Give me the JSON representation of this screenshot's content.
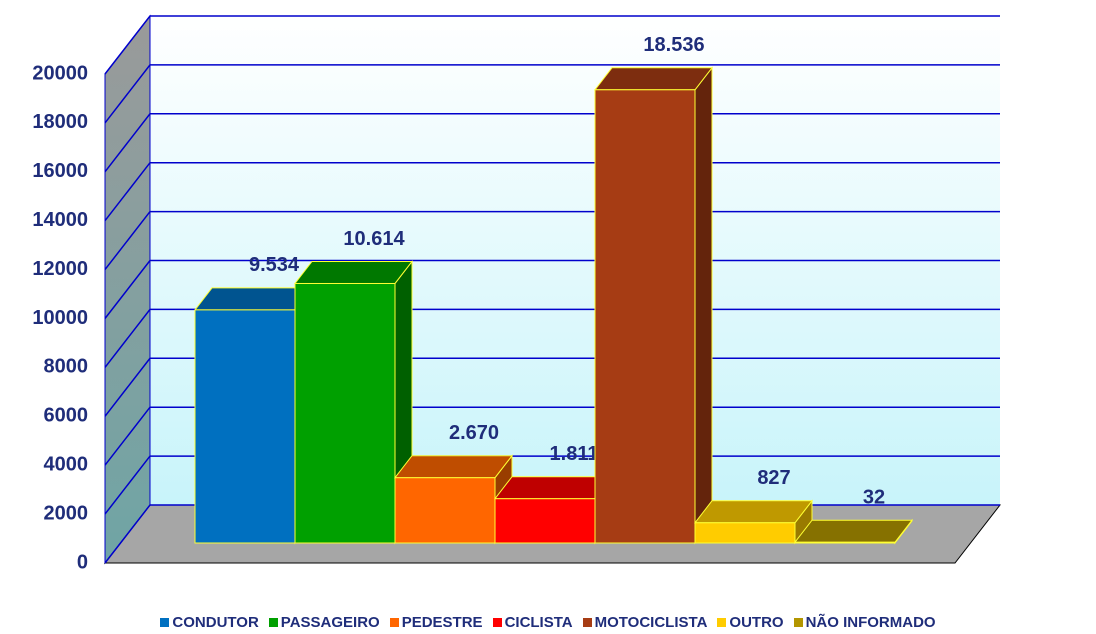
{
  "chart_data": {
    "type": "bar3d",
    "categories": [
      "CONDUTOR",
      "PASSAGEIRO",
      "PEDESTRE",
      "CICLISTA",
      "MOTOCICLISTA",
      "OUTRO",
      "NÃO INFORMADO"
    ],
    "values": [
      9534,
      10614,
      2670,
      1811,
      18536,
      827,
      32
    ],
    "value_labels": [
      "9.534",
      "10.614",
      "2.670",
      "1.811",
      "18.536",
      "827",
      "32"
    ],
    "colors": [
      "#0070c0",
      "#00a000",
      "#ff6600",
      "#ff0000",
      "#a63c14",
      "#ffcc00",
      "#b39600"
    ],
    "ylim": [
      0,
      20000
    ],
    "yticks": [
      0,
      2000,
      4000,
      6000,
      8000,
      10000,
      12000,
      14000,
      16000,
      18000,
      20000
    ],
    "grid": true,
    "legend": "bottom"
  }
}
